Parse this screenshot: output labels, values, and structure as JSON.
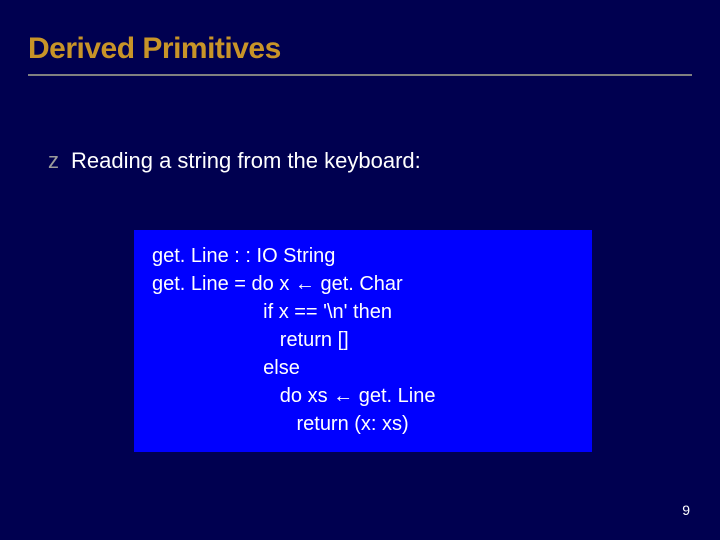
{
  "slide": {
    "title": "Derived Primitives",
    "bullet_marker": "z",
    "bullet_text": "Reading a string from the keyboard:",
    "page_number": "9"
  },
  "code": {
    "line1": "get. Line : : IO String",
    "line2a": "get. Line = do x ",
    "line2b": " get. Char",
    "line3": "                    if x == '\\n' then",
    "line4": "                       return []",
    "line5": "                    else",
    "line6a": "                       do xs ",
    "line6b": " get. Line",
    "line7": "                          return (x: xs)"
  },
  "style": {
    "arrow": "←"
  }
}
